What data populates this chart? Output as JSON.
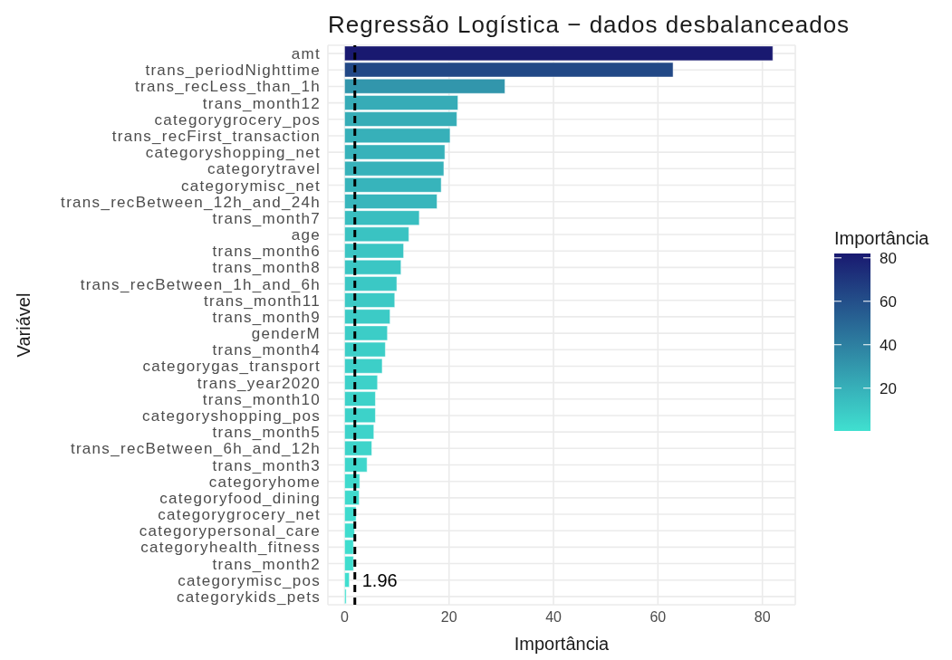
{
  "chart_data": {
    "type": "bar",
    "orientation": "horizontal",
    "title": "Regressão Logística − dados desbalanceados",
    "xlabel": "Importância",
    "ylabel": "Variável",
    "clabel": "Importância",
    "categories": [
      "amt",
      "trans_periodNighttime",
      "trans_recLess_than_1h",
      "trans_month12",
      "categorygrocery_pos",
      "trans_recFirst_transaction",
      "categoryshopping_net",
      "categorytravel",
      "categorymisc_net",
      "trans_recBetween_12h_and_24h",
      "trans_month7",
      "age",
      "trans_month6",
      "trans_month8",
      "trans_recBetween_1h_and_6h",
      "trans_month11",
      "trans_month9",
      "genderM",
      "trans_month4",
      "categorygas_transport",
      "trans_year2020",
      "trans_month10",
      "categoryshopping_pos",
      "trans_month5",
      "trans_recBetween_6h_and_12h",
      "trans_month3",
      "categoryhome",
      "categoryfood_dining",
      "categorygrocery_net",
      "categorypersonal_care",
      "categoryhealth_fitness",
      "trans_month2",
      "categorymisc_pos",
      "categorykids_pets"
    ],
    "values": [
      82,
      62.9,
      30.7,
      21.7,
      21.5,
      20.2,
      19.2,
      19.0,
      18.5,
      17.7,
      14.3,
      12.3,
      11.3,
      10.8,
      10.0,
      9.6,
      8.7,
      8.2,
      7.8,
      7.2,
      6.3,
      5.9,
      5.9,
      5.6,
      5.2,
      4.3,
      2.9,
      2.8,
      2.2,
      1.9,
      1.7,
      1.7,
      0.9,
      0.3
    ],
    "colors": [
      "#191970",
      "#224886",
      "#3296ac",
      "#36acb7",
      "#36adb7",
      "#37b0b9",
      "#37b2ba",
      "#37b2ba",
      "#37b4bb",
      "#38b6bc",
      "#39bec0",
      "#3ac3c2",
      "#3bc5c3",
      "#3bc6c4",
      "#3bc8c5",
      "#3cc9c5",
      "#3ccbc6",
      "#3ccdc7",
      "#3ccec7",
      "#3dcfc8",
      "#3dd1c9",
      "#3dd2c9",
      "#3dd2c9",
      "#3dd3ca",
      "#3ed4ca",
      "#3ed6cb",
      "#3fdacd",
      "#3fdacd",
      "#3fdbce",
      "#3fdcce",
      "#3fddce",
      "#3fddce",
      "#40decf",
      "#40e0d0"
    ],
    "xlim": [
      -3.2,
      86.3
    ],
    "xticks": [
      0,
      20,
      40,
      60,
      80
    ],
    "grid": true,
    "clim": [
      0.3,
      82
    ],
    "cticks": [
      20,
      40,
      60,
      80
    ],
    "ref_lines": [
      {
        "axis": "x",
        "value": 1.96,
        "label": "1.96",
        "color": "#000000",
        "line_style": "dashed"
      }
    ]
  }
}
